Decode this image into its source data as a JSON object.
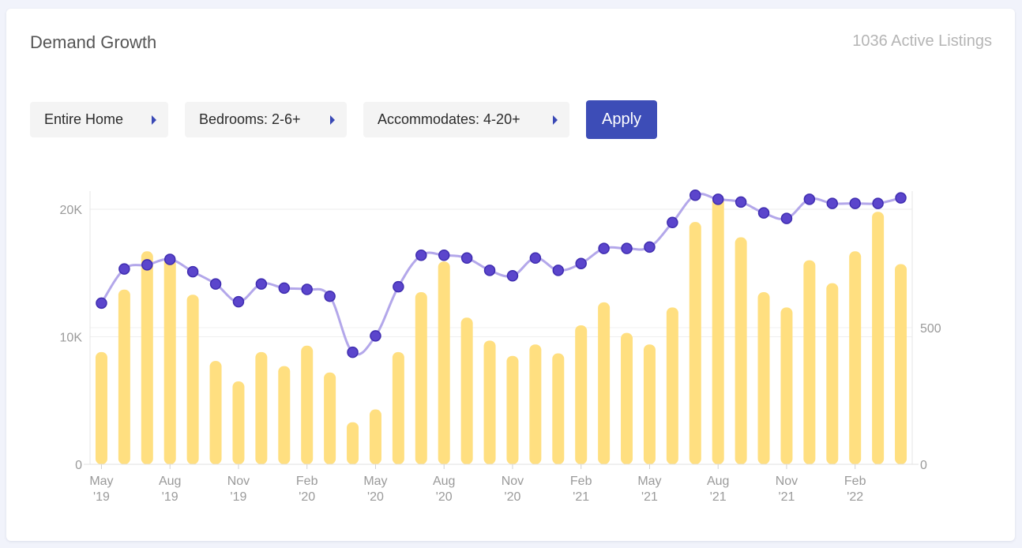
{
  "header": {
    "title": "Demand Growth",
    "active_listings": "1036 Active Listings"
  },
  "filters": {
    "property_type": "Entire Home",
    "bedrooms": "Bedrooms: 2-6+",
    "accommodates": "Accommodates: 4-20+",
    "apply_label": "Apply"
  },
  "colors": {
    "bars": "#ffdf80",
    "line": "#b3a7ea",
    "points": "#5b45cc",
    "point_stroke": "#3f2db0",
    "button": "#3d4db7",
    "arrow": "#3948b5"
  },
  "chart_data": {
    "type": "bar",
    "categories": [
      "May '19",
      "Jun '19",
      "Jul '19",
      "Aug '19",
      "Sep '19",
      "Oct '19",
      "Nov '19",
      "Dec '19",
      "Jan '20",
      "Feb '20",
      "Mar '20",
      "Apr '20",
      "May '20",
      "Jun '20",
      "Jul '20",
      "Aug '20",
      "Sep '20",
      "Oct '20",
      "Nov '20",
      "Dec '20",
      "Jan '21",
      "Feb '21",
      "Mar '21",
      "Apr '21",
      "May '21",
      "Jun '21",
      "Jul '21",
      "Aug '21",
      "Sep '21",
      "Oct '21",
      "Nov '21",
      "Dec '21",
      "Jan '22",
      "Feb '22",
      "Mar '22",
      "Apr '22"
    ],
    "x_tick_labels": [
      {
        "index": 0,
        "line1": "May",
        "line2": "'19"
      },
      {
        "index": 3,
        "line1": "Aug",
        "line2": "'19"
      },
      {
        "index": 6,
        "line1": "Nov",
        "line2": "'19"
      },
      {
        "index": 9,
        "line1": "Feb",
        "line2": "'20"
      },
      {
        "index": 12,
        "line1": "May",
        "line2": "'20"
      },
      {
        "index": 15,
        "line1": "Aug",
        "line2": "'20"
      },
      {
        "index": 18,
        "line1": "Nov",
        "line2": "'20"
      },
      {
        "index": 21,
        "line1": "Feb",
        "line2": "'21"
      },
      {
        "index": 24,
        "line1": "May",
        "line2": "'21"
      },
      {
        "index": 27,
        "line1": "Aug",
        "line2": "'21"
      },
      {
        "index": 30,
        "line1": "Nov",
        "line2": "'21"
      },
      {
        "index": 33,
        "line1": "Feb",
        "line2": "'22"
      }
    ],
    "series": [
      {
        "type": "bar",
        "axis": "left",
        "values": [
          8800,
          13700,
          16700,
          16300,
          13300,
          8100,
          6500,
          8800,
          7700,
          9300,
          7200,
          3300,
          4300,
          8800,
          13500,
          15900,
          11500,
          9700,
          8500,
          9400,
          8700,
          10900,
          12700,
          10300,
          9400,
          12300,
          19000,
          21000,
          17800,
          13500,
          12300,
          16000,
          14200,
          16700,
          19800,
          15700
        ]
      },
      {
        "type": "line",
        "axis": "right",
        "values": [
          590,
          715,
          730,
          750,
          705,
          660,
          595,
          660,
          645,
          640,
          615,
          410,
          470,
          650,
          765,
          765,
          755,
          710,
          690,
          755,
          710,
          735,
          790,
          790,
          795,
          885,
          985,
          970,
          960,
          920,
          900,
          970,
          955,
          955,
          955,
          975
        ]
      }
    ],
    "y_left": {
      "ticks": [
        0,
        10000,
        20000
      ],
      "tick_labels": [
        "0",
        "10K",
        "20K"
      ],
      "range": [
        0,
        20000
      ]
    },
    "y_right": {
      "ticks": [
        0,
        500
      ],
      "tick_labels": [
        "0",
        "500"
      ],
      "range": [
        0,
        1000
      ]
    },
    "grid": true,
    "legend": "none"
  }
}
